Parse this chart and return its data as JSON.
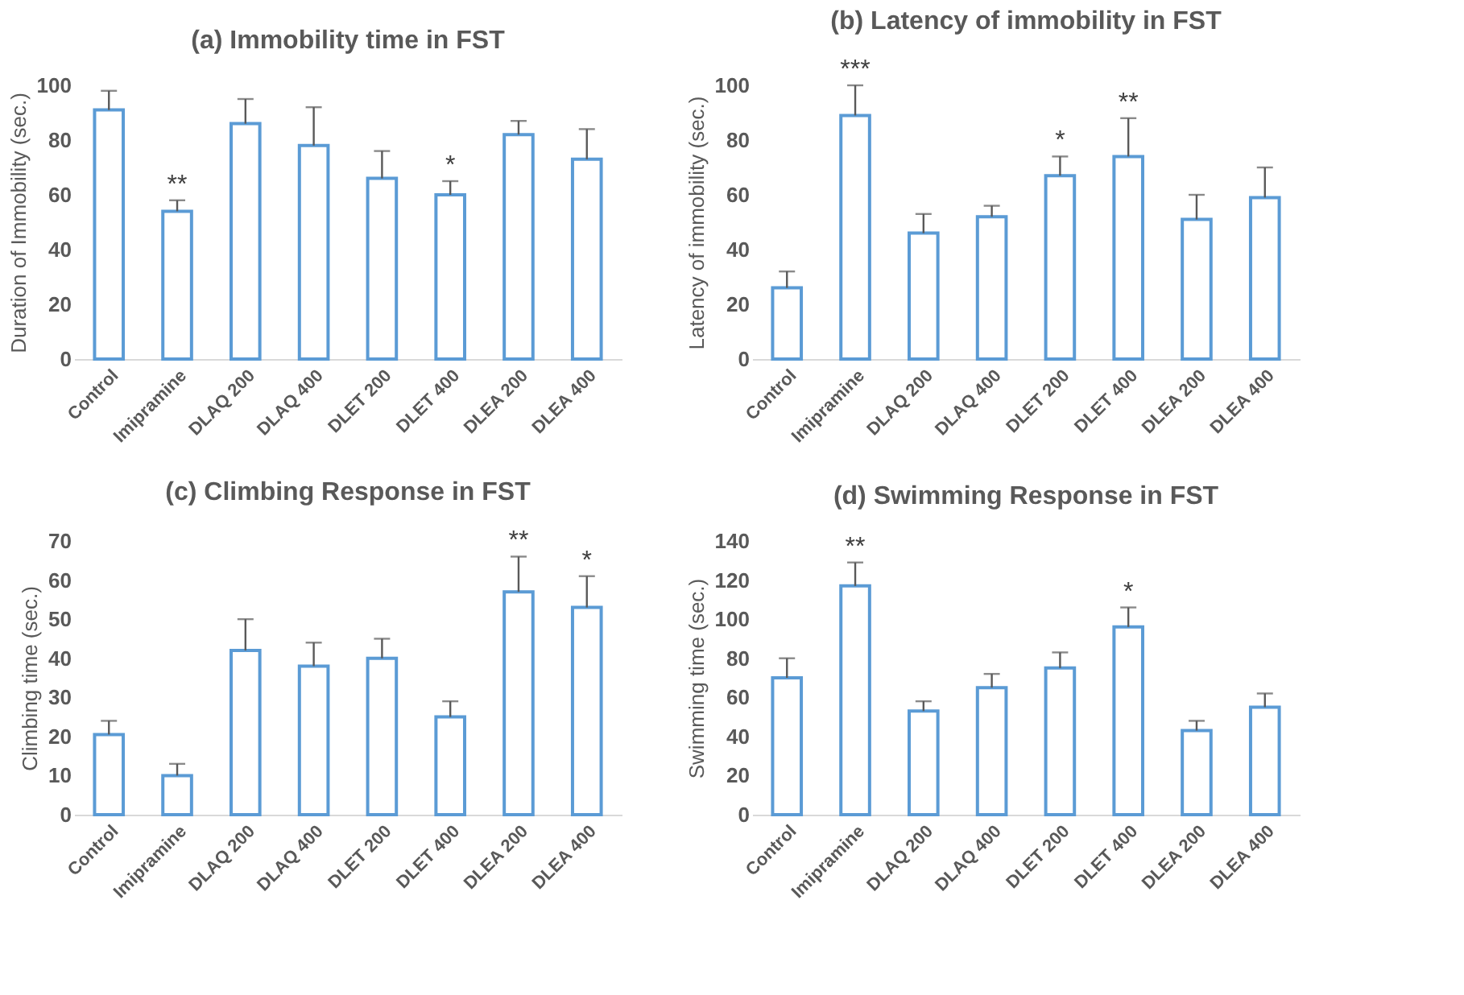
{
  "chart_data": [
    {
      "type": "bar",
      "title": "(a) Immobility time in FST",
      "ylabel": "Duration of Immobility (sec.)",
      "categories": [
        "Control",
        "Imipramine",
        "DLAQ 200",
        "DLAQ 400",
        "DLET 200",
        "DLET 400",
        "DLEA 200",
        "DLEA 400"
      ],
      "values": [
        91,
        54,
        86,
        78,
        66,
        60,
        82,
        73
      ],
      "errors": [
        [
          91,
          98
        ],
        [
          54,
          58
        ],
        [
          86,
          95
        ],
        [
          78,
          92
        ],
        [
          66,
          76
        ],
        [
          60,
          65
        ],
        [
          82,
          87
        ],
        [
          73,
          84
        ]
      ],
      "color": "#5b9bd5",
      "ylim": [
        0,
        100
      ],
      "yticks": [
        0,
        20,
        40,
        60,
        80,
        100
      ],
      "grid": false,
      "annotations": [
        {
          "text": "**",
          "x": "Imipramine",
          "y": 58
        },
        {
          "text": "*",
          "x": "DLET 400",
          "y": 65
        }
      ]
    },
    {
      "type": "bar",
      "title": "(b) Latency of immobility in FST",
      "ylabel": "Latency of immobility (sec.)",
      "categories": [
        "Control",
        "Imipramine",
        "DLAQ 200",
        "DLAQ 400",
        "DLET 200",
        "DLET 400",
        "DLEA 200",
        "DLEA 400"
      ],
      "values": [
        26,
        89,
        46,
        52,
        67,
        74,
        51,
        59
      ],
      "errors": [
        [
          26,
          32
        ],
        [
          89,
          100
        ],
        [
          46,
          53
        ],
        [
          52,
          56
        ],
        [
          67,
          74
        ],
        [
          74,
          88
        ],
        [
          51,
          60
        ],
        [
          59,
          70
        ]
      ],
      "color": "#5b9bd5",
      "ylim": [
        0,
        100
      ],
      "yticks": [
        0,
        20,
        40,
        60,
        80,
        100
      ],
      "grid": false,
      "annotations": [
        {
          "text": "***",
          "x": "Imipramine",
          "y": 100
        },
        {
          "text": "*",
          "x": "DLET 200",
          "y": 74
        },
        {
          "text": "**",
          "x": "DLET 400",
          "y": 88
        }
      ]
    },
    {
      "type": "bar",
      "title": "(c) Climbing Response in FST",
      "ylabel": "Climbing time (sec.)",
      "categories": [
        "Control",
        "Imipramine",
        "DLAQ 200",
        "DLAQ 400",
        "DLET 200",
        "DLET 400",
        "DLEA 200",
        "DLEA 400"
      ],
      "values": [
        20.5,
        10,
        42,
        38,
        40,
        25,
        57,
        53
      ],
      "errors": [
        [
          20.5,
          24
        ],
        [
          10,
          13
        ],
        [
          42,
          50
        ],
        [
          38,
          44
        ],
        [
          40,
          45
        ],
        [
          25,
          29
        ],
        [
          57,
          66
        ],
        [
          53,
          61
        ]
      ],
      "color": "#5b9bd5",
      "ylim": [
        0,
        70
      ],
      "yticks": [
        0,
        10,
        20,
        30,
        40,
        50,
        60,
        70
      ],
      "grid": false,
      "annotations": [
        {
          "text": "**",
          "x": "DLEA 200",
          "y": 66
        },
        {
          "text": "*",
          "x": "DLEA 400",
          "y": 61
        }
      ]
    },
    {
      "type": "bar",
      "title": "(d) Swimming Response in FST",
      "ylabel": "Swimming time (sec.)",
      "categories": [
        "Control",
        "Imipramine",
        "DLAQ 200",
        "DLAQ 400",
        "DLET 200",
        "DLET 400",
        "DLEA 200",
        "DLEA 400"
      ],
      "values": [
        70,
        117,
        53,
        65,
        75,
        96,
        43,
        55
      ],
      "errors": [
        [
          70,
          80
        ],
        [
          117,
          129
        ],
        [
          53,
          58
        ],
        [
          65,
          72
        ],
        [
          75,
          83
        ],
        [
          96,
          106
        ],
        [
          43,
          48
        ],
        [
          55,
          62
        ]
      ],
      "color": "#5b9bd5",
      "ylim": [
        0,
        140
      ],
      "yticks": [
        0,
        20,
        40,
        60,
        80,
        100,
        120,
        140
      ],
      "grid": false,
      "annotations": [
        {
          "text": "**",
          "x": "Imipramine",
          "y": 129
        },
        {
          "text": "*",
          "x": "DLET 400",
          "y": 106
        }
      ]
    }
  ]
}
